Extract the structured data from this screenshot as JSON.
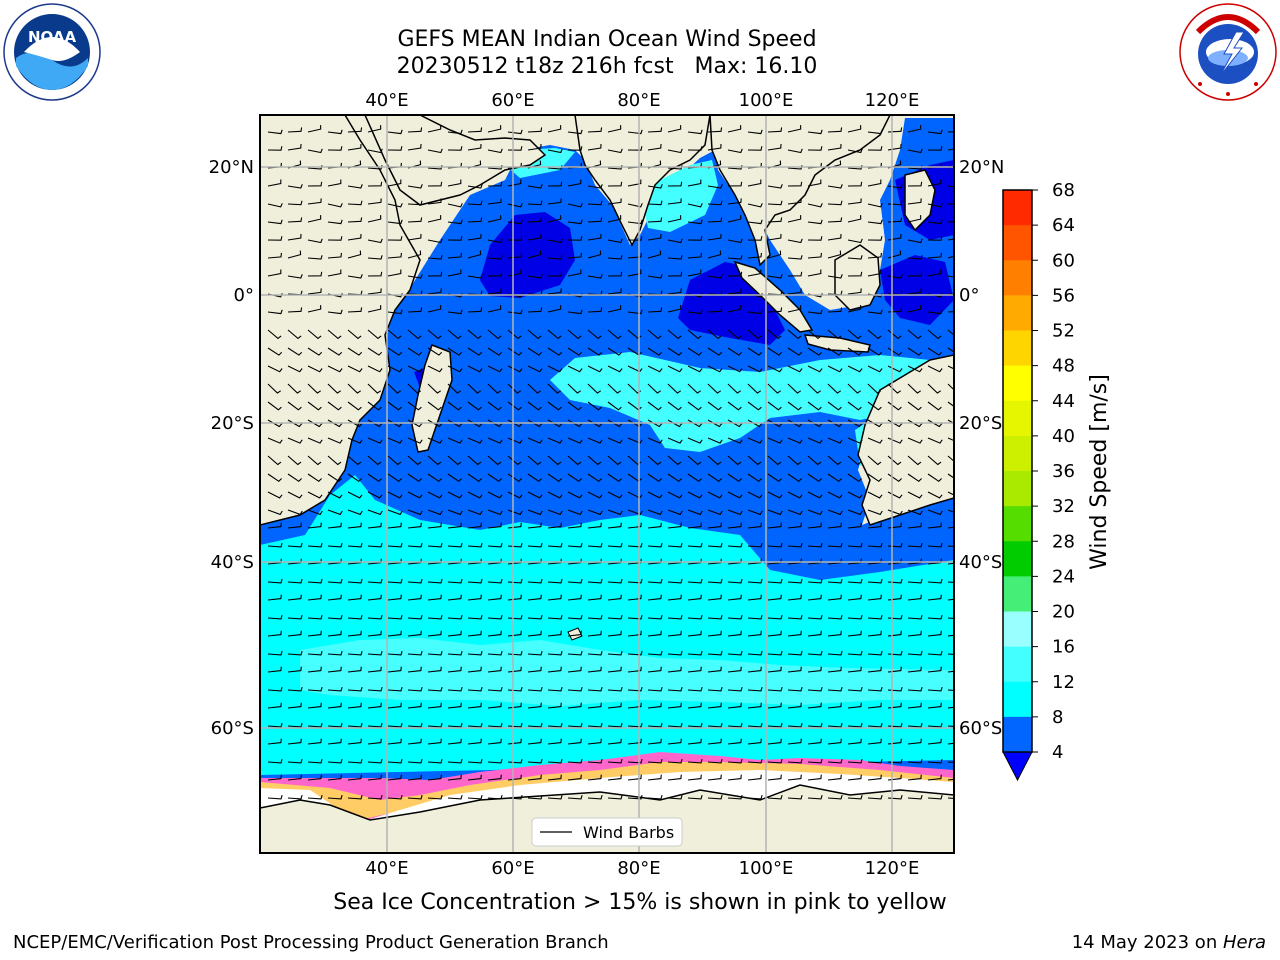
{
  "title": {
    "line1": "GEFS MEAN Indian Ocean Wind Speed",
    "line2": "20230512 t18z 216h fcst   Max: 16.10"
  },
  "logos": {
    "left": {
      "name": "noaa-logo",
      "text": "NOAA",
      "ring_text": "NATIONAL OCEANIC AND ATMOSPHERIC ADMINISTRATION · U.S. DEPARTMENT OF COMMERCE"
    },
    "right": {
      "name": "nws-logo",
      "ring_text": "NATIONAL WEATHER SERVICE"
    }
  },
  "map": {
    "region": "Indian Ocean",
    "lon_ticks": [
      "40°E",
      "60°E",
      "80°E",
      "100°E",
      "120°E"
    ],
    "lat_ticks": [
      "20°N",
      "0°",
      "20°S",
      "40°S",
      "60°S"
    ],
    "legend_label": "Wind Barbs",
    "colors": {
      "land": "#efefdc",
      "ice_free_white": "#ffffff",
      "speed_4_8": "#0064ff",
      "speed_0_4": "#0000e6",
      "speed_8_12": "#00ffff",
      "speed_12_16": "#3cffff",
      "ice": "#ff66cc",
      "ice_high": "#ffcc66",
      "grid": "#b4b4b4"
    }
  },
  "colorbar": {
    "label": "Wind Speed [m/s]",
    "ticks": [
      "68",
      "64",
      "60",
      "56",
      "52",
      "48",
      "44",
      "40",
      "36",
      "32",
      "28",
      "24",
      "20",
      "16",
      "12",
      "8",
      "4"
    ],
    "colors": [
      "#ff0000",
      "#ff2a00",
      "#ff5500",
      "#ff8000",
      "#ffaa00",
      "#ffd500",
      "#ffff00",
      "#e6f500",
      "#ccf000",
      "#aaea00",
      "#55dd00",
      "#00cc00",
      "#44ee77",
      "#99ffff",
      "#44ffff",
      "#00ffff",
      "#0066ff"
    ],
    "under_color": "#0000ff"
  },
  "caption": "Sea Ice Concentration > 15% is shown in pink to yellow",
  "footer": {
    "left": "NCEP/EMC/Verification Post Processing Product Generation Branch",
    "right_prefix": "14 May 2023 on ",
    "right_host": "Hera"
  }
}
